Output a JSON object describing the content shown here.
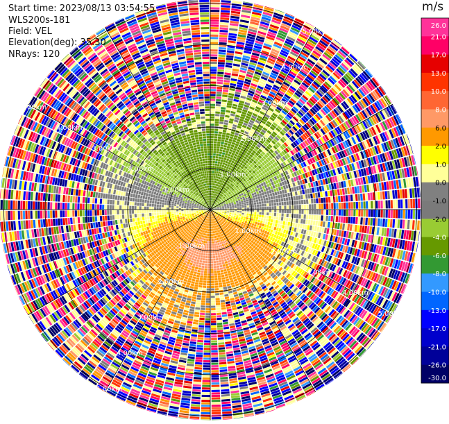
{
  "header": {
    "start_time": "Start time: 2023/08/13 03:54:55",
    "instrument": "WLS200s-181",
    "field": "Field: VEL",
    "elevation": "Elevation(deg): 35.30",
    "nrays": "NRays: 120"
  },
  "chart_data": {
    "type": "ppi",
    "field": "VEL",
    "units": "m/s",
    "elevation_deg": 35.3,
    "nrays": 120,
    "range_ring_labels": [
      "1.00km",
      "2.00km",
      "3.00km",
      "4.00km",
      "5.00km"
    ],
    "range_rings_km": [
      1,
      2,
      3,
      4,
      5
    ],
    "colorbar": {
      "ticks": [
        26.0,
        21.0,
        17.0,
        13.0,
        10.0,
        8.0,
        6.0,
        2.0,
        1.0,
        0.0,
        -1.0,
        -2.0,
        -4.0,
        -6.0,
        -8.0,
        -10.0,
        -13.0,
        -17.0,
        -21.0,
        -26.0,
        -30.0
      ],
      "tick_labels": [
        "26.0",
        "21.0",
        "17.0",
        "13.0",
        "10.0",
        "8.0",
        "6.0",
        "2.0",
        "1.0",
        "0.0",
        "-1.0",
        "-2.0",
        "-4.0",
        "-6.0",
        "-8.0",
        "-10.0",
        "-13.0",
        "-17.0",
        "-21.0",
        "-26.0",
        "-30.0"
      ],
      "colors": [
        "#ff3399",
        "#ff0066",
        "#e60000",
        "#ff3300",
        "#ff6633",
        "#ff9966",
        "#ff9900",
        "#ffff00",
        "#ffff99",
        "#808080",
        "#7a7a7a",
        "#99cc33",
        "#669900",
        "#339933",
        "#3399ff",
        "#0066ff",
        "#0000ff",
        "#0000cc",
        "#000099",
        "#000066"
      ]
    },
    "pattern": {
      "near_positive": "yellow/orange (away) to south-west, peak orange ~ -south",
      "near_negative": "green (toward) to north",
      "far_field": "noise beyond ~2.5km"
    }
  },
  "colors": {
    "background": "#ffffff",
    "rings": "#000000",
    "ring_label": "#ffffff"
  }
}
